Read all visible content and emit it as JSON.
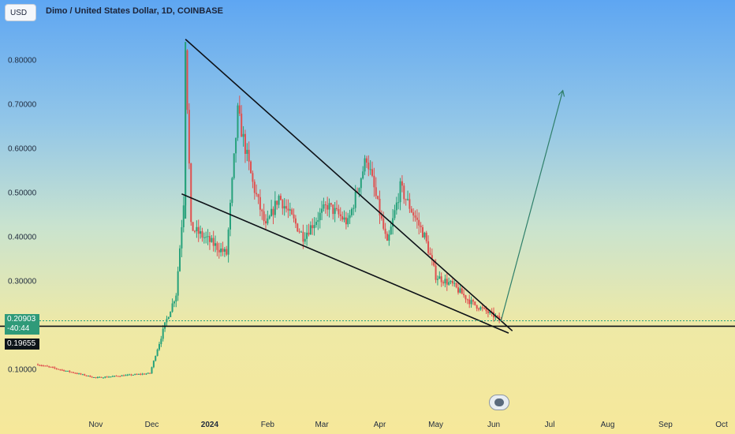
{
  "header": {
    "currency_button": "USD",
    "title": "Dimo / United States Dollar, 1D, COINBASE"
  },
  "price_tags": {
    "last_price": "0.20903",
    "countdown": "-40:44",
    "horizontal_line_price": "0.19655"
  },
  "colors": {
    "up_candle": "#26a17b",
    "down_candle": "#e0504f",
    "trendline": "#0d1117",
    "projection_arrow": "#2f7f6a"
  },
  "chart_data": {
    "type": "candlestick",
    "title": "Dimo / United States Dollar, 1D, COINBASE",
    "y_ticks": [
      "0.80000",
      "0.70000",
      "0.60000",
      "0.50000",
      "0.40000",
      "0.30000",
      "0.10000"
    ],
    "y_tick_values": [
      0.8,
      0.7,
      0.6,
      0.5,
      0.4,
      0.3,
      0.1
    ],
    "ylim": [
      0.0,
      0.92
    ],
    "x_ticks": [
      "Nov",
      "Dec",
      "2024",
      "Feb",
      "Mar",
      "Apr",
      "May",
      "Jun",
      "Jul",
      "Aug",
      "Sep",
      "Oct"
    ],
    "bold_x_tick": "2024",
    "x_range_dates": [
      "2023-10-01",
      "2024-10-01"
    ],
    "grid": false,
    "overview_points": [
      {
        "date": "2023-10-01",
        "close": 0.11
      },
      {
        "date": "2023-11-01",
        "close": 0.08
      },
      {
        "date": "2023-11-30",
        "close": 0.09
      },
      {
        "date": "2023-12-08",
        "close": 0.2
      },
      {
        "date": "2023-12-14",
        "close": 0.27
      },
      {
        "date": "2023-12-18",
        "close": 0.48
      },
      {
        "date": "2023-12-19",
        "close": 0.84
      },
      {
        "date": "2023-12-22",
        "close": 0.42
      },
      {
        "date": "2024-01-10",
        "close": 0.36
      },
      {
        "date": "2024-01-16",
        "close": 0.68
      },
      {
        "date": "2024-01-24",
        "close": 0.52
      },
      {
        "date": "2024-01-31",
        "close": 0.42
      },
      {
        "date": "2024-02-07",
        "close": 0.49
      },
      {
        "date": "2024-02-20",
        "close": 0.4
      },
      {
        "date": "2024-03-04",
        "close": 0.47
      },
      {
        "date": "2024-03-15",
        "close": 0.43
      },
      {
        "date": "2024-03-25",
        "close": 0.58
      },
      {
        "date": "2024-04-05",
        "close": 0.38
      },
      {
        "date": "2024-04-12",
        "close": 0.51
      },
      {
        "date": "2024-04-25",
        "close": 0.4
      },
      {
        "date": "2024-05-01",
        "close": 0.31
      },
      {
        "date": "2024-05-10",
        "close": 0.29
      },
      {
        "date": "2024-05-20",
        "close": 0.25
      },
      {
        "date": "2024-06-01",
        "close": 0.22
      },
      {
        "date": "2024-06-05",
        "close": 0.209
      }
    ],
    "upper_trendline": [
      {
        "date": "2023-12-19",
        "y": 0.846
      },
      {
        "date": "2024-06-11",
        "y": 0.186
      }
    ],
    "lower_trendline": [
      {
        "date": "2023-12-17",
        "y": 0.496
      },
      {
        "date": "2024-06-09",
        "y": 0.181
      }
    ],
    "horizontal_line": {
      "y": 0.19655
    },
    "projection_arrow": [
      {
        "date": "2024-06-05",
        "y": 0.21
      },
      {
        "date": "2024-07-08",
        "y": 0.73
      }
    ]
  }
}
